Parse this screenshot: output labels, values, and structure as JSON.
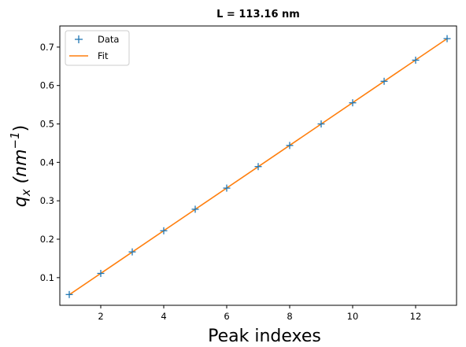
{
  "chart_data": {
    "type": "line",
    "title": "L = 113.16 nm",
    "xlabel": "Peak indexes",
    "ylabel": {
      "base": "q",
      "sub": "x",
      "unit_open": " (nm",
      "sup": "−1",
      "unit_close": ")"
    },
    "xlim": [
      0.7,
      13.3
    ],
    "ylim": [
      0.028,
      0.755
    ],
    "xticks": [
      2,
      4,
      6,
      8,
      10,
      12
    ],
    "yticks": [
      0.1,
      0.2,
      0.3,
      0.4,
      0.5,
      0.6,
      0.7
    ],
    "grid": false,
    "legend_position": "top-left",
    "series": [
      {
        "name": "Data",
        "kind": "scatter",
        "marker": "+",
        "color": "#1f77b4",
        "x": [
          1,
          2,
          3,
          4,
          5,
          6,
          7,
          8,
          9,
          10,
          11,
          12,
          13
        ],
        "y": [
          0.056,
          0.111,
          0.167,
          0.222,
          0.278,
          0.333,
          0.389,
          0.444,
          0.5,
          0.555,
          0.611,
          0.666,
          0.722
        ]
      },
      {
        "name": "Fit",
        "kind": "line",
        "color": "#ff7f0e",
        "x": [
          1,
          13
        ],
        "y": [
          0.0555,
          0.722
        ]
      }
    ]
  }
}
